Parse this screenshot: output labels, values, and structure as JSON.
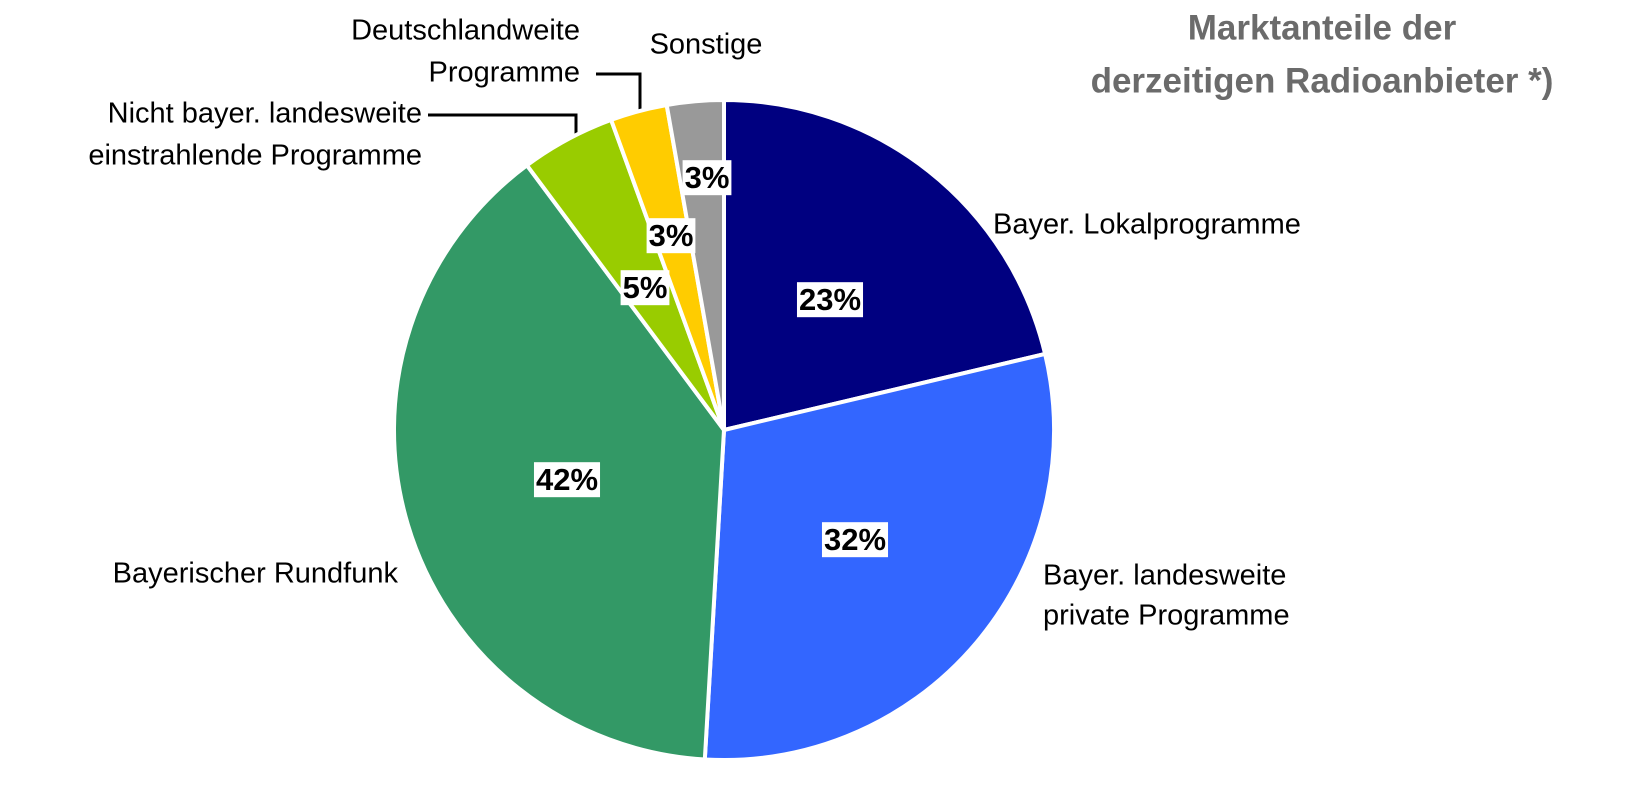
{
  "chart_data": {
    "type": "pie",
    "title": [
      "Marktanteile der",
      "derzeitigen Radioanbieter *)"
    ],
    "categories": [
      [
        "Bayer. Lokalprogramme"
      ],
      [
        "Bayer. landesweite",
        "private Programme"
      ],
      [
        "Bayerischer Rundfunk"
      ],
      [
        "Nicht bayer. landesweite",
        "einstrahlende Programme"
      ],
      [
        "Deutschlandweite",
        "Programme"
      ],
      [
        "Sonstige"
      ]
    ],
    "values": [
      23,
      32,
      42,
      5,
      3,
      3
    ],
    "value_labels": [
      "23%",
      "32%",
      "42%",
      "5%",
      "3%",
      "3%"
    ],
    "colors": [
      "#000080",
      "#3366ff",
      "#339966",
      "#99cc00",
      "#ffcc00",
      "#999999"
    ]
  }
}
